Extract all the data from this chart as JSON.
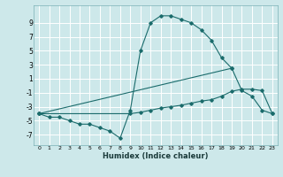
{
  "xlabel": "Humidex (Indice chaleur)",
  "xlim": [
    -0.5,
    23.5
  ],
  "ylim": [
    -8.5,
    11.5
  ],
  "yticks": [
    -7,
    -5,
    -3,
    -1,
    1,
    3,
    5,
    7,
    9
  ],
  "xticks": [
    0,
    1,
    2,
    3,
    4,
    5,
    6,
    7,
    8,
    9,
    10,
    11,
    12,
    13,
    14,
    15,
    16,
    17,
    18,
    19,
    20,
    21,
    22,
    23
  ],
  "bg_color": "#cde8ea",
  "grid_color": "#b0d8dc",
  "line_color": "#1a6b6b",
  "line1_x": [
    0,
    1,
    2,
    3,
    4,
    5,
    6,
    7,
    8,
    9,
    10,
    11,
    12,
    13,
    14,
    15,
    16,
    17,
    18,
    19
  ],
  "line1_y": [
    -4,
    -4.5,
    -4.5,
    -5,
    -5.5,
    -5.5,
    -6,
    -6.5,
    -7.5,
    -3.5,
    5,
    9,
    10,
    10,
    9.5,
    9,
    8,
    6.5,
    4,
    2.5
  ],
  "line2_x": [
    0,
    19,
    20,
    21,
    22,
    23
  ],
  "line2_y": [
    -4,
    2.5,
    -0.7,
    -1.5,
    -3.5,
    -4
  ],
  "line3_x": [
    0,
    9,
    10,
    11,
    12,
    13,
    14,
    15,
    16,
    17,
    18,
    19,
    20,
    21,
    22,
    23
  ],
  "line3_y": [
    -4,
    -4,
    -3.8,
    -3.5,
    -3.2,
    -3,
    -2.8,
    -2.5,
    -2.2,
    -2,
    -1.5,
    -0.8,
    -0.5,
    -0.5,
    -0.7,
    -4
  ]
}
